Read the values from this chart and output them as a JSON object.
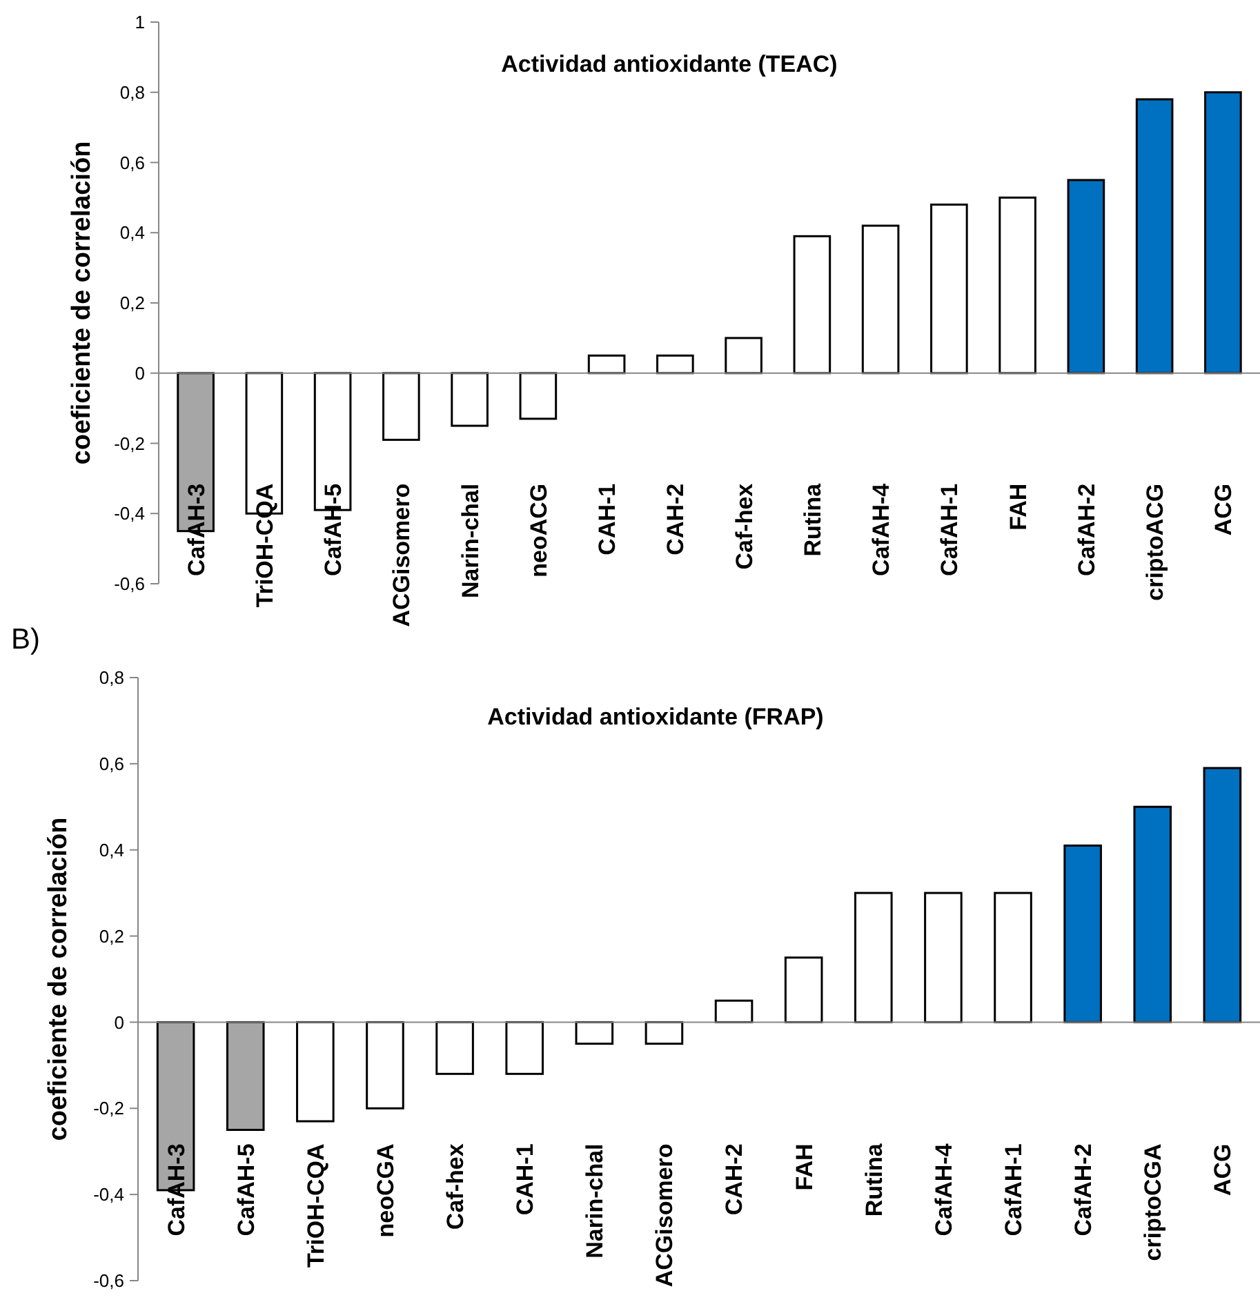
{
  "chart_data": [
    {
      "type": "bar",
      "title": "Actividad antioxidante (TEAC)",
      "ylabel": "coeficiente de correlación",
      "categories": [
        "CafAH-3",
        "TriOH-CQA",
        "CafAH-5",
        "ACGisomero",
        "Narin-chal",
        "neoACG",
        "CAH-1",
        "CAH-2",
        "Caf-hex",
        "Rutina",
        "CafAH-4",
        "CafAH-1",
        "FAH",
        "CafAH-2",
        "criptoACG",
        "ACG"
      ],
      "values": [
        -0.45,
        -0.4,
        -0.39,
        -0.19,
        -0.15,
        -0.13,
        0.05,
        0.05,
        0.1,
        0.39,
        0.42,
        0.48,
        0.5,
        0.55,
        0.78,
        0.8
      ],
      "colors": [
        "#a6a6a6",
        "#ffffff",
        "#ffffff",
        "#ffffff",
        "#ffffff",
        "#ffffff",
        "#ffffff",
        "#ffffff",
        "#ffffff",
        "#ffffff",
        "#ffffff",
        "#ffffff",
        "#ffffff",
        "#0070c0",
        "#0070c0",
        "#0070c0"
      ],
      "ylim": [
        -0.6,
        1
      ],
      "yticks": [
        {
          "value": -0.6,
          "label": "-0,6"
        },
        {
          "value": -0.4,
          "label": "-0,4"
        },
        {
          "value": -0.2,
          "label": "-0,2"
        },
        {
          "value": 0,
          "label": "0"
        },
        {
          "value": 0.2,
          "label": "0,2"
        },
        {
          "value": 0.4,
          "label": "0,4"
        },
        {
          "value": 0.6,
          "label": "0,6"
        },
        {
          "value": 0.8,
          "label": "0,8"
        },
        {
          "value": 1,
          "label": "1"
        }
      ]
    },
    {
      "type": "bar",
      "title": "Actividad antioxidante (FRAP)",
      "ylabel": "coeficiente de correlación",
      "annotations": [
        "B)"
      ],
      "categories": [
        "CafAH-3",
        "CafAH-5",
        "TriOH-CQA",
        "neoCGA",
        "Caf-hex",
        "CAH-1",
        "Narin-chal",
        "ACGisomero",
        "CAH-2",
        "FAH",
        "Rutina",
        "CafAH-4",
        "CafAH-1",
        "CafAH-2",
        "criptoCGA",
        "ACG"
      ],
      "values": [
        -0.39,
        -0.25,
        -0.23,
        -0.2,
        -0.12,
        -0.12,
        -0.05,
        -0.05,
        0.05,
        0.15,
        0.3,
        0.3,
        0.3,
        0.41,
        0.5,
        0.59
      ],
      "colors": [
        "#a6a6a6",
        "#a6a6a6",
        "#ffffff",
        "#ffffff",
        "#ffffff",
        "#ffffff",
        "#ffffff",
        "#ffffff",
        "#ffffff",
        "#ffffff",
        "#ffffff",
        "#ffffff",
        "#ffffff",
        "#0070c0",
        "#0070c0",
        "#0070c0"
      ],
      "ylim": [
        -0.6,
        0.8
      ],
      "yticks": [
        {
          "value": -0.6,
          "label": "-0,6"
        },
        {
          "value": -0.4,
          "label": "-0,4"
        },
        {
          "value": -0.2,
          "label": "-0,2"
        },
        {
          "value": 0,
          "label": "0"
        },
        {
          "value": 0.2,
          "label": "0,2"
        },
        {
          "value": 0.4,
          "label": "0,4"
        },
        {
          "value": 0.6,
          "label": "0,6"
        },
        {
          "value": 0.8,
          "label": "0,8"
        }
      ]
    }
  ]
}
